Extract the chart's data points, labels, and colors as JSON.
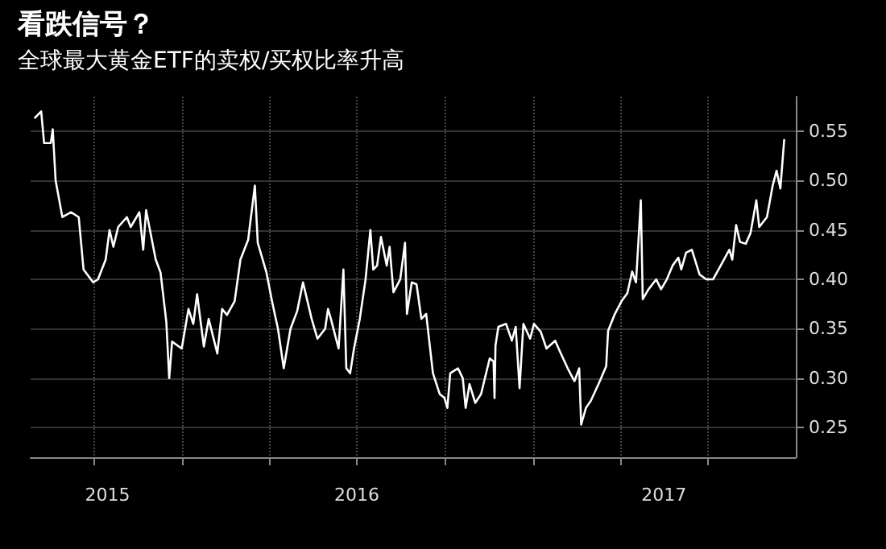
{
  "chart_data": {
    "type": "line",
    "title": "看跌信号？",
    "subtitle": "全球最大黄金ETF的卖权/买权比率升高",
    "x": [
      "2015-08-01",
      "2015-08-08",
      "2015-08-11",
      "2015-08-18",
      "2015-08-20",
      "2015-08-23",
      "2015-08-30",
      "2015-09-08",
      "2015-09-16",
      "2015-09-21",
      "2015-10-01",
      "2015-10-06",
      "2015-10-14",
      "2015-10-18",
      "2015-10-22",
      "2015-10-27",
      "2015-11-05",
      "2015-11-09",
      "2015-11-18",
      "2015-11-22",
      "2015-11-25",
      "2015-12-05",
      "2015-12-10",
      "2015-12-16",
      "2015-12-19",
      "2015-12-22",
      "2016-01-01",
      "2016-01-08",
      "2016-01-13",
      "2016-01-17",
      "2016-01-24",
      "2016-01-29",
      "2016-02-07",
      "2016-02-12",
      "2016-02-17",
      "2016-02-25",
      "2016-03-02",
      "2016-03-10",
      "2016-03-17",
      "2016-03-20",
      "2016-03-29",
      "2016-04-04",
      "2016-04-10",
      "2016-04-16",
      "2016-04-23",
      "2016-04-30",
      "2016-05-06",
      "2016-05-15",
      "2016-05-21",
      "2016-05-29",
      "2016-06-01",
      "2016-06-04",
      "2016-06-12",
      "2016-06-17",
      "2016-06-20",
      "2016-06-24",
      "2016-06-28",
      "2016-07-04",
      "2016-07-10",
      "2016-07-15",
      "2016-07-18",
      "2016-07-22",
      "2016-07-26",
      "2016-08-01",
      "2016-08-04",
      "2016-08-08",
      "2016-08-15",
      "2016-08-20",
      "2016-08-22",
      "2016-08-27",
      "2016-09-01",
      "2016-09-06",
      "2016-09-11",
      "2016-09-18",
      "2016-09-25",
      "2016-09-30",
      "2016-10-03",
      "2016-10-06",
      "2016-10-14",
      "2016-10-19",
      "2016-10-22",
      "2016-10-26",
      "2016-11-01",
      "2016-11-07",
      "2016-11-16",
      "2016-11-20",
      "2016-11-21",
      "2016-11-22",
      "2016-11-25",
      "2016-12-03",
      "2016-12-09",
      "2016-12-13",
      "2016-12-17",
      "2016-12-21",
      "2016-12-28",
      "2017-01-01",
      "2017-01-08",
      "2017-01-14",
      "2017-01-23",
      "2017-01-28",
      "2017-02-05",
      "2017-02-12",
      "2017-02-17",
      "2017-02-19",
      "2017-02-24",
      "2017-03-01",
      "2017-03-09",
      "2017-03-17",
      "2017-03-19",
      "2017-03-26",
      "2017-04-02",
      "2017-04-08",
      "2017-04-13",
      "2017-04-17",
      "2017-04-22",
      "2017-04-24",
      "2017-04-30",
      "2017-05-08",
      "2017-05-13",
      "2017-05-19",
      "2017-05-25",
      "2017-05-31",
      "2017-06-03",
      "2017-06-08",
      "2017-06-14",
      "2017-06-22",
      "2017-06-29",
      "2017-07-06",
      "2017-07-14",
      "2017-07-23",
      "2017-07-26",
      "2017-07-30",
      "2017-08-03",
      "2017-08-09",
      "2017-08-14",
      "2017-08-20",
      "2017-08-23",
      "2017-08-31",
      "2017-09-06",
      "2017-09-10",
      "2017-09-14",
      "2017-09-18"
    ],
    "values": [
      0.563,
      0.57,
      0.538,
      0.538,
      0.552,
      0.5,
      0.463,
      0.468,
      0.463,
      0.41,
      0.397,
      0.4,
      0.42,
      0.45,
      0.433,
      0.453,
      0.463,
      0.453,
      0.468,
      0.43,
      0.47,
      0.42,
      0.407,
      0.357,
      0.3,
      0.337,
      0.33,
      0.37,
      0.355,
      0.385,
      0.332,
      0.36,
      0.325,
      0.37,
      0.364,
      0.378,
      0.42,
      0.44,
      0.495,
      0.437,
      0.407,
      0.377,
      0.35,
      0.31,
      0.35,
      0.368,
      0.397,
      0.36,
      0.34,
      0.35,
      0.37,
      0.36,
      0.33,
      0.41,
      0.31,
      0.305,
      0.33,
      0.36,
      0.4,
      0.45,
      0.41,
      0.414,
      0.443,
      0.414,
      0.433,
      0.387,
      0.4,
      0.437,
      0.365,
      0.397,
      0.395,
      0.36,
      0.365,
      0.305,
      0.284,
      0.28,
      0.27,
      0.305,
      0.31,
      0.3,
      0.27,
      0.294,
      0.275,
      0.284,
      0.32,
      0.317,
      0.28,
      0.333,
      0.352,
      0.355,
      0.338,
      0.352,
      0.29,
      0.355,
      0.34,
      0.355,
      0.347,
      0.33,
      0.338,
      0.327,
      0.31,
      0.297,
      0.31,
      0.253,
      0.27,
      0.277,
      0.294,
      0.312,
      0.348,
      0.365,
      0.378,
      0.386,
      0.408,
      0.397,
      0.48,
      0.38,
      0.39,
      0.4,
      0.39,
      0.4,
      0.414,
      0.422,
      0.41,
      0.427,
      0.43,
      0.405,
      0.4,
      0.4,
      0.414,
      0.43,
      0.42,
      0.455,
      0.438,
      0.436,
      0.447,
      0.48,
      0.453,
      0.463,
      0.495,
      0.51,
      0.492,
      0.542
    ],
    "color": "#ffffff",
    "marker": "none",
    "xlim": [
      "2015-07-28",
      "2017-09-30"
    ],
    "xticks": [
      {
        "value": "2015-10-01",
        "label": null
      },
      {
        "value": "2016-01-01",
        "label": null
      },
      {
        "value": "2016-04-01",
        "label": null
      },
      {
        "value": "2016-07-01",
        "label": null
      },
      {
        "value": "2016-10-01",
        "label": null
      },
      {
        "value": "2017-01-01",
        "label": null
      },
      {
        "value": "2017-04-01",
        "label": null
      },
      {
        "value": "2017-07-01",
        "label": null
      },
      {
        "value": "2015-10-16",
        "label": "2015"
      },
      {
        "value": "2016-07-01",
        "label": "2016"
      },
      {
        "value": "2017-05-16",
        "label": "2017"
      }
    ],
    "ylim": [
      0.22,
      0.585
    ],
    "yticks": [
      {
        "value": 0.25,
        "label": "0.25"
      },
      {
        "value": 0.3,
        "label": "0.30"
      },
      {
        "value": 0.35,
        "label": "0.35"
      },
      {
        "value": 0.4,
        "label": "0.40"
      },
      {
        "value": 0.45,
        "label": "0.45"
      },
      {
        "value": 0.5,
        "label": "0.50"
      },
      {
        "value": 0.55,
        "label": "0.55"
      }
    ],
    "grid": true
  }
}
